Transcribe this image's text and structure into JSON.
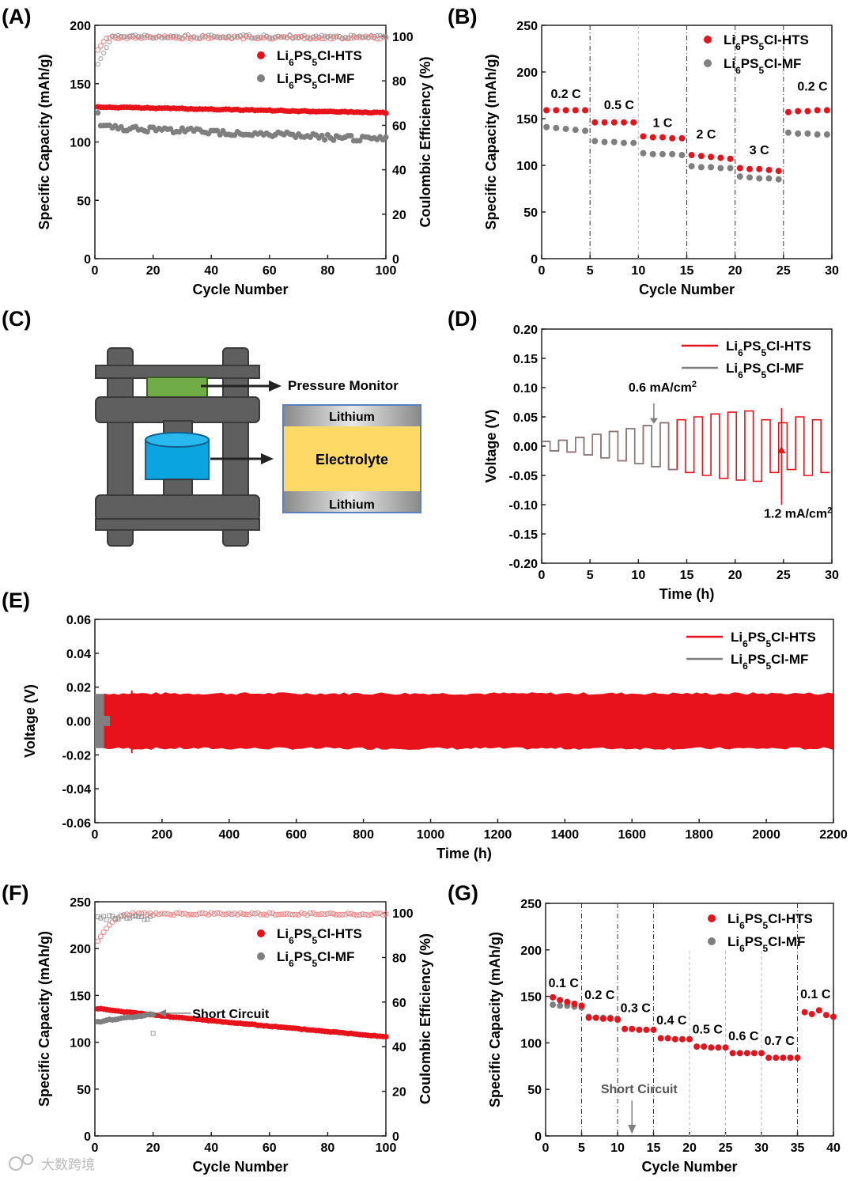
{
  "colors": {
    "hts": "#e8121a",
    "mf": "#7f7f7f",
    "ce_hts": "#f08080",
    "ce_mf": "#9a9a9a"
  },
  "legend": {
    "hts": "Li6PS5Cl-HTS",
    "mf": "Li6PS5Cl-MF"
  },
  "watermark": "大数跨境",
  "chart_data": [
    {
      "panel": "(A)",
      "type": "scatter",
      "xlabel": "Cycle Number",
      "ylabel": "Specific Capacity (mAh/g)",
      "ylabel_right": "Coulombic Efficiency (%)",
      "xlim": [
        0,
        100
      ],
      "ylim": [
        0,
        200
      ],
      "ylim_right": [
        0,
        105
      ],
      "xticks": [
        "0",
        "20",
        "40",
        "60",
        "80",
        "100"
      ],
      "yticks": [
        "0",
        "50",
        "100",
        "150",
        "200"
      ],
      "yticks_right": [
        "0",
        "20",
        "40",
        "60",
        "80",
        "100"
      ],
      "series": [
        {
          "name": "Li6PS5Cl-HTS capacity",
          "start": 130,
          "end": 125
        },
        {
          "name": "Li6PS5Cl-MF capacity",
          "start": 113,
          "end": 102
        },
        {
          "name": "Li6PS5Cl-HTS Coulombic efficiency",
          "start": 92,
          "end": 99.5
        },
        {
          "name": "Li6PS5Cl-MF Coulombic efficiency",
          "start": 85,
          "end": 100
        }
      ]
    },
    {
      "panel": "(B)",
      "type": "scatter",
      "xlabel": "Cycle Number",
      "ylabel": "Specific Capacity (mAh/g)",
      "xlim": [
        0,
        30
      ],
      "ylim": [
        0,
        250
      ],
      "xticks": [
        "0",
        "5",
        "10",
        "15",
        "20",
        "25",
        "30"
      ],
      "yticks": [
        "0",
        "50",
        "100",
        "150",
        "200",
        "250"
      ],
      "rates": [
        "0.2 C",
        "0.5 C",
        "1 C",
        "2 C",
        "3 C",
        "0.2 C"
      ],
      "series": [
        {
          "name": "Li6PS5Cl-HTS",
          "values": [
            159,
            159,
            159,
            159,
            159,
            146,
            146,
            146,
            146,
            146,
            131,
            130,
            130,
            129,
            129,
            111,
            110,
            109,
            108,
            107,
            97,
            96,
            96,
            95,
            94,
            157,
            158,
            158,
            159,
            159
          ]
        },
        {
          "name": "Li6PS5Cl-MF",
          "values": [
            141,
            140,
            139,
            138,
            137,
            126,
            125,
            125,
            124,
            124,
            113,
            112,
            112,
            112,
            111,
            99,
            98,
            98,
            97,
            97,
            88,
            87,
            86,
            86,
            85,
            135,
            134,
            134,
            133,
            133
          ]
        }
      ]
    },
    {
      "panel": "(D)",
      "type": "line",
      "xlabel": "Time (h)",
      "ylabel": "Voltage (V)",
      "xlim": [
        0,
        30
      ],
      "ylim": [
        -0.2,
        0.2
      ],
      "xticks": [
        "0",
        "5",
        "10",
        "15",
        "20",
        "25",
        "30"
      ],
      "yticks": [
        "0.20",
        "0.15",
        "0.10",
        "0.05",
        "0.00",
        "-0.05",
        "-0.10",
        "-0.15",
        "-0.20"
      ],
      "annotations": [
        "0.6 mA/cm2",
        "1.2 mA/cm2"
      ],
      "series": [
        {
          "name": "Li6PS5Cl-HTS",
          "amplitudes": [
            0.008,
            0.01,
            0.015,
            0.02,
            0.025,
            0.03,
            0.035,
            0.04,
            0.045,
            0.05,
            0.055,
            0.058,
            0.06,
            0.045,
            0.04,
            0.05,
            0.045
          ]
        },
        {
          "name": "Li6PS5Cl-MF",
          "amplitudes": [
            0.008,
            0.01,
            0.015,
            0.02,
            0.025,
            0.03,
            0.035,
            0.04
          ]
        }
      ]
    },
    {
      "panel": "(E)",
      "type": "line",
      "xlabel": "Time (h)",
      "ylabel": "Voltage (V)",
      "xlim": [
        0,
        2200
      ],
      "ylim": [
        -0.06,
        0.06
      ],
      "xticks": [
        "0",
        "200",
        "400",
        "600",
        "800",
        "1000",
        "1200",
        "1400",
        "1600",
        "1800",
        "2000",
        "2200"
      ],
      "yticks": [
        "0.06",
        "0.04",
        "0.02",
        "0.00",
        "-0.02",
        "-0.04",
        "-0.06"
      ],
      "series": [
        {
          "name": "Li6PS5Cl-HTS",
          "band": [
            -0.016,
            0.016
          ],
          "duration_h": 2200
        },
        {
          "name": "Li6PS5Cl-MF",
          "band": [
            -0.016,
            0.016
          ],
          "duration_h": 45
        }
      ]
    },
    {
      "panel": "(F)",
      "type": "scatter",
      "xlabel": "Cycle Number",
      "ylabel": "Specific Capacity (mAh/g)",
      "ylabel_right": "Coulombic Efficiency (%)",
      "xlim": [
        0,
        100
      ],
      "ylim": [
        0,
        250
      ],
      "ylim_right": [
        0,
        105
      ],
      "xticks": [
        "0",
        "20",
        "40",
        "60",
        "80",
        "100"
      ],
      "yticks": [
        "0",
        "50",
        "100",
        "150",
        "200",
        "250"
      ],
      "yticks_right": [
        "0",
        "20",
        "40",
        "60",
        "80",
        "100"
      ],
      "annotation": "Short Circuit",
      "series": [
        {
          "name": "Li6PS5Cl-HTS capacity",
          "start": 136,
          "end": 106
        },
        {
          "name": "Li6PS5Cl-MF capacity",
          "start": 122,
          "end": 130,
          "cycles": 20
        },
        {
          "name": "Li6PS5Cl-HTS Coulombic efficiency",
          "start": 85,
          "end": 99.5
        },
        {
          "name": "Li6PS5Cl-MF Coulombic efficiency",
          "start": 97,
          "end": 46,
          "cycles": 20
        }
      ]
    },
    {
      "panel": "(G)",
      "type": "scatter",
      "xlabel": "Cycle Number",
      "ylabel": "Specific Capacity (mAh/g)",
      "xlim": [
        0,
        40
      ],
      "ylim": [
        0,
        250
      ],
      "xticks": [
        "0",
        "5",
        "10",
        "15",
        "20",
        "25",
        "30",
        "35",
        "40"
      ],
      "yticks": [
        "0",
        "50",
        "100",
        "150",
        "200",
        "250"
      ],
      "rates": [
        "0.1 C",
        "0.2 C",
        "0.3 C",
        "0.4 C",
        "0.5 C",
        "0.6 C",
        "0.7 C",
        "0.1 C"
      ],
      "annotation": "Short Circuit",
      "series": [
        {
          "name": "Li6PS5Cl-HTS",
          "values": [
            149,
            146,
            144,
            142,
            140,
            127,
            127,
            126,
            126,
            125,
            115,
            115,
            114,
            114,
            114,
            105,
            105,
            104,
            104,
            104,
            96,
            96,
            95,
            95,
            95,
            89,
            89,
            89,
            89,
            89,
            84,
            84,
            84,
            84,
            84,
            133,
            131,
            135,
            130,
            128
          ]
        },
        {
          "name": "Li6PS5Cl-MF",
          "values": [
            141,
            140,
            140,
            139,
            138,
            128,
            127,
            127,
            127,
            126,
            115,
            115
          ]
        }
      ]
    }
  ],
  "schematic": {
    "panel": "(C)",
    "pressure_label": "Pressure Monitor",
    "top_layer": "Lithium",
    "middle_layer": "Electrolyte",
    "bottom_layer": "Lithium"
  }
}
